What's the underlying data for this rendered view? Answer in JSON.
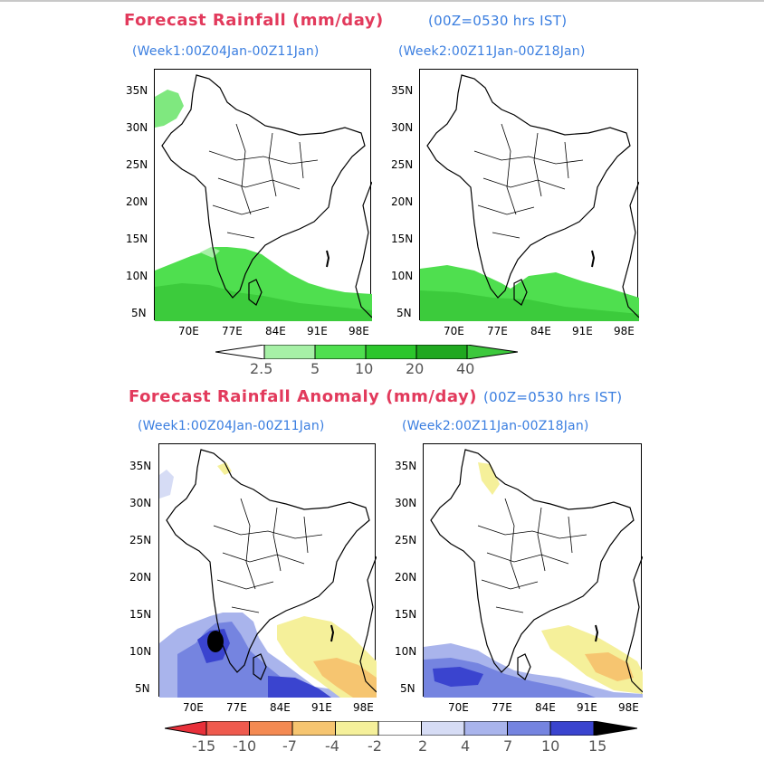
{
  "top_section": {
    "title": "Forecast Rainfall (mm/day)",
    "time_note": "(00Z=0530 hrs IST)",
    "panel_left_title": "(Week1:00Z04Jan-00Z11Jan)",
    "panel_right_title": "(Week2:00Z11Jan-00Z18Jan)"
  },
  "bottom_section": {
    "title": "Forecast Rainfall Anomaly (mm/day)",
    "time_note": "(00Z=0530 hrs IST)",
    "panel_left_title": "(Week1:00Z04Jan-00Z11Jan)",
    "panel_right_title": "(Week2:00Z11Jan-00Z18Jan)"
  },
  "axes": {
    "lat_ticks": [
      "35N",
      "30N",
      "25N",
      "20N",
      "15N",
      "10N",
      "5N"
    ],
    "lon_ticks": [
      "70E",
      "77E",
      "84E",
      "91E",
      "98E"
    ]
  },
  "rainfall_legend": {
    "labels": [
      "2.5",
      "5",
      "10",
      "20",
      "40"
    ],
    "colors": [
      "#ffffff",
      "#a6f0a6",
      "#4fdf4f",
      "#2cc62c",
      "#20a820",
      "#3cc83c"
    ]
  },
  "anomaly_legend": {
    "labels": [
      "-15",
      "-10",
      "-7",
      "-4",
      "-2",
      "2",
      "4",
      "7",
      "10",
      "15"
    ],
    "colors": [
      "#e8303a",
      "#ef5a4e",
      "#f48a52",
      "#f6c570",
      "#f5f09a",
      "#ffffff",
      "#d6dcf5",
      "#a9b4ec",
      "#7584e0",
      "#3a44cf",
      "#000000"
    ]
  }
}
